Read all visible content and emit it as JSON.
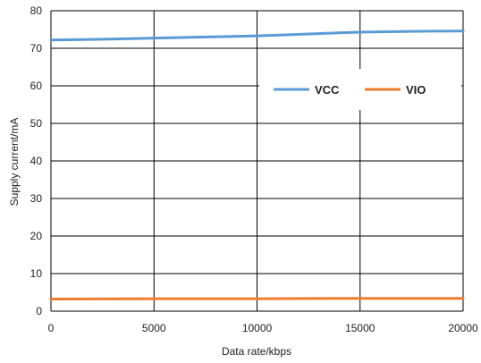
{
  "chart_data": {
    "type": "line",
    "title": "",
    "xlabel": "Data rate/kbps",
    "ylabel": "Supply current/mA",
    "xlim": [
      0,
      20000
    ],
    "ylim": [
      0,
      80
    ],
    "xticks": [
      0,
      5000,
      10000,
      15000,
      20000
    ],
    "yticks": [
      0,
      10,
      20,
      30,
      40,
      50,
      60,
      70,
      80
    ],
    "grid": true,
    "legend": "upper-right, inside plot",
    "series": [
      {
        "name": "VCC",
        "color": "#5b9bd5",
        "x": [
          0,
          2500,
          5000,
          7500,
          10000,
          12500,
          15000,
          17500,
          20000
        ],
        "y": [
          72.2,
          72.4,
          72.7,
          73.0,
          73.3,
          73.8,
          74.3,
          74.5,
          74.6
        ]
      },
      {
        "name": "VIO",
        "color": "#ed7d31",
        "x": [
          0,
          5000,
          10000,
          15000,
          20000
        ],
        "y": [
          3.2,
          3.3,
          3.3,
          3.4,
          3.4
        ]
      }
    ]
  }
}
